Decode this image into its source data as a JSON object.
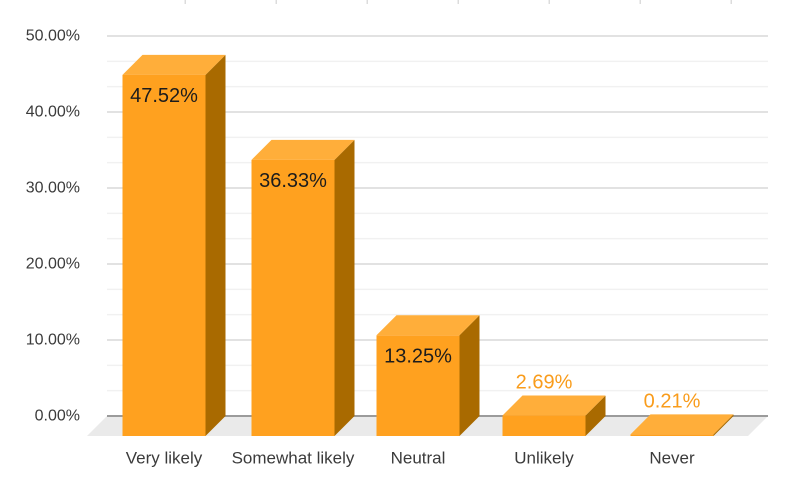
{
  "chart_data": {
    "type": "bar",
    "style": "3d-column",
    "title": "",
    "xlabel": "",
    "ylabel": "",
    "categories": [
      "Very likely",
      "Somewhat likely",
      "Neutral",
      "Unlikely",
      "Never"
    ],
    "values": [
      47.52,
      36.33,
      13.25,
      2.69,
      0.21
    ],
    "value_labels": [
      "47.52%",
      "36.33%",
      "13.25%",
      "2.69%",
      "0.21%"
    ],
    "ylim": [
      0,
      50
    ],
    "ytick_step": 10,
    "ytick_labels": [
      "0.00%",
      "10.00%",
      "20.00%",
      "30.00%",
      "40.00%",
      "50.00%"
    ],
    "minor_gridlines_per_major": 2,
    "grid": true,
    "legend": "none",
    "inside_label_threshold_pct": 5,
    "colors": {
      "bar_front": "#FFA11F",
      "bar_top": "#FFAE3A",
      "bar_side": "#A96A00",
      "label_inside": "#1C1C1C",
      "label_outside": "#F99C1B",
      "axis_text": "#3B3B3B",
      "gridline_major": "#E2E2E2",
      "gridline_minor": "#F1F1F1",
      "baseline": "#9B9B9B",
      "floor": "#EAEAEA",
      "top_tick": "#DCDCDC",
      "background": "#FFFFFF"
    }
  }
}
